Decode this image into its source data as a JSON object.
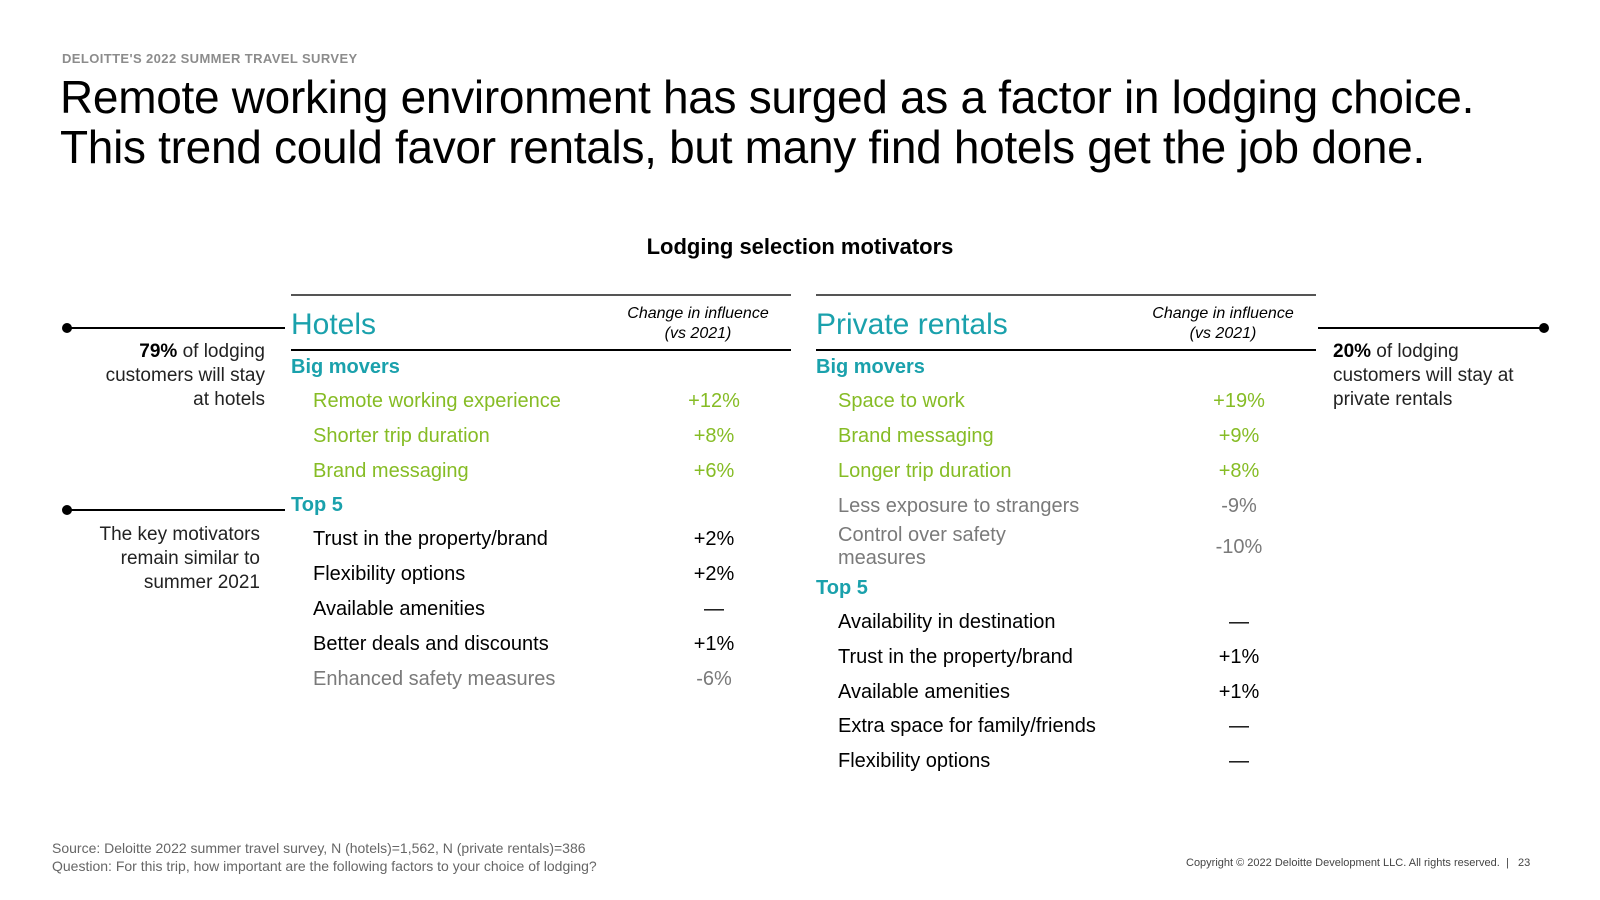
{
  "header": {
    "kicker": "DELOITTE'S 2022 SUMMER TRAVEL SURVEY",
    "headline_line1": "Remote working environment has surged as a factor in lodging choice.",
    "headline_line2": "This trend could favor rentals, but many find hotels get the job done."
  },
  "chart_title": "Lodging selection motivators",
  "left_callouts": {
    "hotels_pct": "79%",
    "hotels_text_1": " of lodging",
    "hotels_text_2": "customers will stay",
    "hotels_text_3": "at hotels",
    "motivators_1": "The key motivators",
    "motivators_2": "remain similar to",
    "motivators_3": "summer 2021"
  },
  "right_callout": {
    "rentals_pct": "20%",
    "rentals_text_1": " of lodging",
    "rentals_text_2": "customers will stay at",
    "rentals_text_3": "private rentals"
  },
  "hotels": {
    "title": "Hotels",
    "change_header_1": "Change in influence",
    "change_header_2": "(vs 2021)",
    "big_movers_label": "Big movers",
    "big_movers": [
      {
        "label": "Remote working experience",
        "value": "+12%"
      },
      {
        "label": "Shorter trip duration",
        "value": "+8%"
      },
      {
        "label": "Brand messaging",
        "value": "+6%"
      }
    ],
    "top5_label": "Top 5",
    "top5": [
      {
        "label": "Trust in the property/brand",
        "value": "+2%"
      },
      {
        "label": "Flexibility options",
        "value": "+2%"
      },
      {
        "label": "Available amenities",
        "value": "—"
      },
      {
        "label": "Better deals and discounts",
        "value": "+1%"
      },
      {
        "label": "Enhanced safety measures",
        "value": "-6%"
      }
    ]
  },
  "rentals": {
    "title": "Private rentals",
    "change_header_1": "Change in influence",
    "change_header_2": "(vs 2021)",
    "big_movers_label": "Big movers",
    "big_movers": [
      {
        "label": "Space to work",
        "value": "+19%"
      },
      {
        "label": "Brand messaging",
        "value": "+9%"
      },
      {
        "label": "Longer trip duration",
        "value": "+8%"
      },
      {
        "label": "Less exposure to strangers",
        "value": "-9%"
      },
      {
        "label": "Control over safety",
        "label2": "measures",
        "value": "-10%"
      }
    ],
    "top5_label": "Top 5",
    "top5": [
      {
        "label": "Availability in destination",
        "value": "—"
      },
      {
        "label": "Trust in the property/brand",
        "value": "+1%"
      },
      {
        "label": "Available amenities",
        "value": "+1%"
      },
      {
        "label": "Extra space for family/friends",
        "value": "—"
      },
      {
        "label": "Flexibility options",
        "value": "—"
      }
    ]
  },
  "footer": {
    "source": "Source: Deloitte 2022 summer travel survey, N (hotels)=1,562, N (private rentals)=386",
    "question": "Question: For this trip, how important are the following factors to your choice of lodging?",
    "copyright": "Copyright © 2022 Deloitte Development LLC. All rights reserved.",
    "page_number": "23"
  },
  "colors": {
    "teal": "#1aa1ac",
    "green": "#86bc25",
    "grey": "#7a7a7a"
  }
}
